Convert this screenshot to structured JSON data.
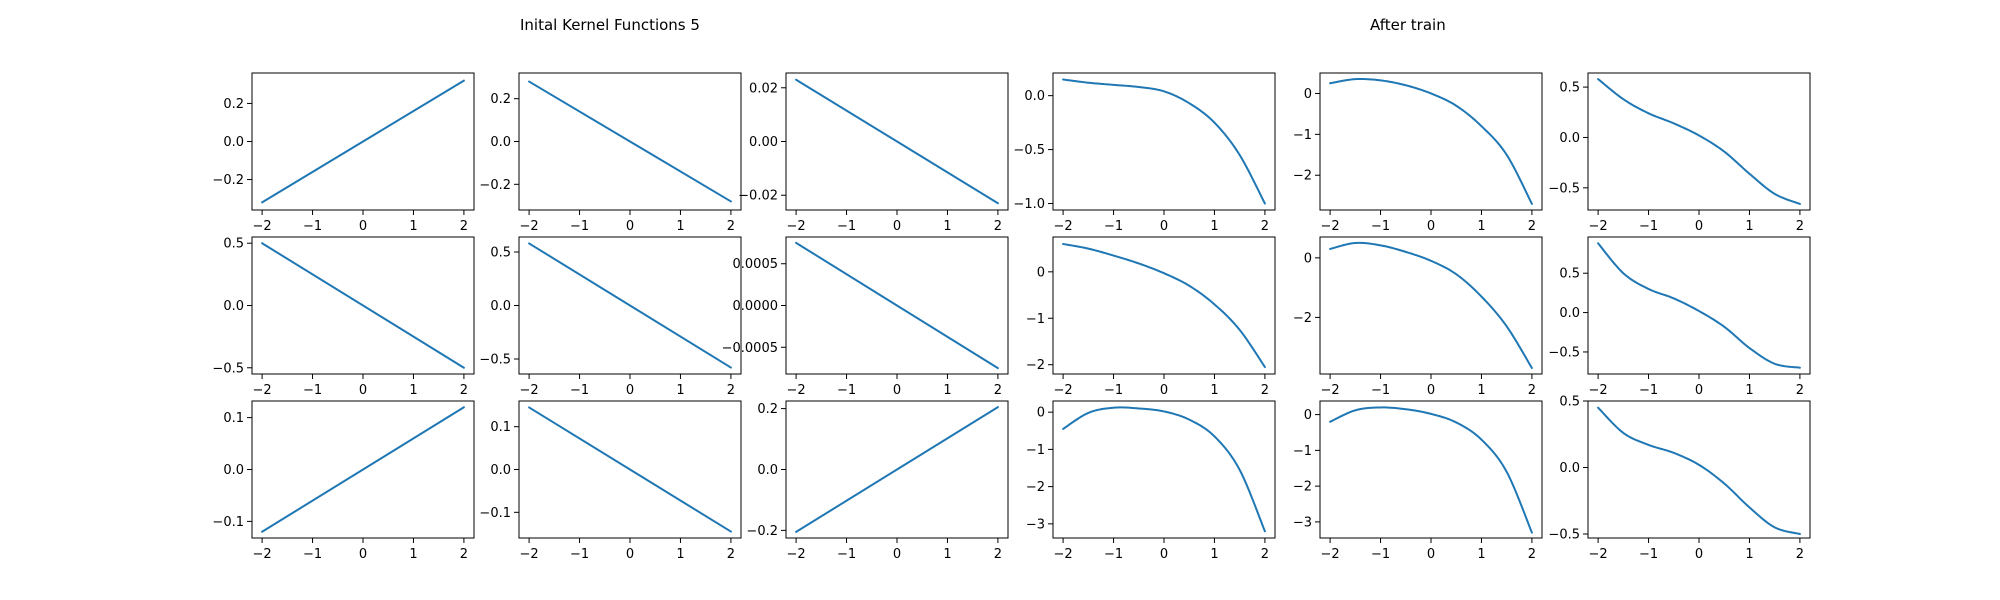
{
  "titles": {
    "left": "Inital Kernel Functions 5",
    "right": "After train"
  },
  "colors": {
    "line": "#1f77b4"
  },
  "chart_data": [
    {
      "type": "line",
      "row": 0,
      "col": 0,
      "x": [
        -2,
        2
      ],
      "y": [
        -0.32,
        0.32
      ],
      "ylim": [
        -0.36,
        0.36
      ],
      "yticks": [
        -0.2,
        0.0,
        0.2
      ],
      "ytick_labels": [
        "−0.2",
        "0.0",
        "0.2"
      ],
      "xticks": [
        -2,
        -1,
        0,
        1,
        2
      ],
      "xtick_labels": [
        "−2",
        "−1",
        "0",
        "1",
        "2"
      ]
    },
    {
      "type": "line",
      "row": 0,
      "col": 1,
      "x": [
        -2,
        2
      ],
      "y": [
        0.28,
        -0.28
      ],
      "ylim": [
        -0.32,
        0.32
      ],
      "yticks": [
        -0.2,
        0.0,
        0.2
      ],
      "ytick_labels": [
        "−0.2",
        "0.0",
        "0.2"
      ],
      "xticks": [
        -2,
        -1,
        0,
        1,
        2
      ],
      "xtick_labels": [
        "−2",
        "−1",
        "0",
        "1",
        "2"
      ]
    },
    {
      "type": "line",
      "row": 0,
      "col": 2,
      "x": [
        -2,
        2
      ],
      "y": [
        0.023,
        -0.023
      ],
      "ylim": [
        -0.0255,
        0.0255
      ],
      "yticks": [
        -0.02,
        0.0,
        0.02
      ],
      "ytick_labels": [
        "−0.02",
        "0.00",
        "0.02"
      ],
      "xticks": [
        -2,
        -1,
        0,
        1,
        2
      ],
      "xtick_labels": [
        "−2",
        "−1",
        "0",
        "1",
        "2"
      ]
    },
    {
      "type": "line",
      "row": 0,
      "col": 3,
      "x": [
        -2,
        -1.5,
        -1,
        -0.5,
        0,
        0.5,
        1,
        1.5,
        2
      ],
      "y": [
        0.15,
        0.12,
        0.1,
        0.08,
        0.04,
        -0.07,
        -0.25,
        -0.55,
        -1.0
      ],
      "ylim": [
        -1.06,
        0.21
      ],
      "yticks": [
        -1.0,
        -0.5,
        0.0
      ],
      "ytick_labels": [
        "−1.0",
        "−0.5",
        "0.0"
      ],
      "xticks": [
        -2,
        -1,
        0,
        1,
        2
      ],
      "xtick_labels": [
        "−2",
        "−1",
        "0",
        "1",
        "2"
      ]
    },
    {
      "type": "line",
      "row": 0,
      "col": 4,
      "x": [
        -2,
        -1.5,
        -1,
        -0.5,
        0,
        0.5,
        1,
        1.5,
        2
      ],
      "y": [
        0.25,
        0.35,
        0.32,
        0.2,
        0.0,
        -0.3,
        -0.8,
        -1.5,
        -2.7
      ],
      "ylim": [
        -2.85,
        0.5
      ],
      "yticks": [
        -2,
        -1,
        0
      ],
      "ytick_labels": [
        "−2",
        "−1",
        "0"
      ],
      "xticks": [
        -2,
        -1,
        0,
        1,
        2
      ],
      "xtick_labels": [
        "−2",
        "−1",
        "0",
        "1",
        "2"
      ]
    },
    {
      "type": "line",
      "row": 0,
      "col": 5,
      "x": [
        -2,
        -1.5,
        -1,
        -0.5,
        0,
        0.5,
        1,
        1.5,
        2
      ],
      "y": [
        0.58,
        0.38,
        0.24,
        0.14,
        0.02,
        -0.14,
        -0.36,
        -0.56,
        -0.66
      ],
      "ylim": [
        -0.72,
        0.64
      ],
      "yticks": [
        -0.5,
        0.0,
        0.5
      ],
      "ytick_labels": [
        "−0.5",
        "0.0",
        "0.5"
      ],
      "xticks": [
        -2,
        -1,
        0,
        1,
        2
      ],
      "xtick_labels": [
        "−2",
        "−1",
        "0",
        "1",
        "2"
      ]
    },
    {
      "type": "line",
      "row": 1,
      "col": 0,
      "x": [
        -2,
        2
      ],
      "y": [
        0.5,
        -0.5
      ],
      "ylim": [
        -0.55,
        0.55
      ],
      "yticks": [
        -0.5,
        0.0,
        0.5
      ],
      "ytick_labels": [
        "−0.5",
        "0.0",
        "0.5"
      ],
      "xticks": [
        -2,
        -1,
        0,
        1,
        2
      ],
      "xtick_labels": [
        "−2",
        "−1",
        "0",
        "1",
        "2"
      ]
    },
    {
      "type": "line",
      "row": 1,
      "col": 1,
      "x": [
        -2,
        2
      ],
      "y": [
        0.58,
        -0.58
      ],
      "ylim": [
        -0.64,
        0.64
      ],
      "yticks": [
        -0.5,
        0.0,
        0.5
      ],
      "ytick_labels": [
        "−0.5",
        "0.0",
        "0.5"
      ],
      "xticks": [
        -2,
        -1,
        0,
        1,
        2
      ],
      "xtick_labels": [
        "−2",
        "−1",
        "0",
        "1",
        "2"
      ]
    },
    {
      "type": "line",
      "row": 1,
      "col": 2,
      "x": [
        -2,
        2
      ],
      "y": [
        0.00075,
        -0.00075
      ],
      "ylim": [
        -0.00082,
        0.00082
      ],
      "yticks": [
        -0.0005,
        0.0,
        0.0005
      ],
      "ytick_labels": [
        "−0.0005",
        "0.0000",
        "0.0005"
      ],
      "xticks": [
        -2,
        -1,
        0,
        1,
        2
      ],
      "xtick_labels": [
        "−2",
        "−1",
        "0",
        "1",
        "2"
      ]
    },
    {
      "type": "line",
      "row": 1,
      "col": 3,
      "x": [
        -2,
        -1.5,
        -1,
        -0.5,
        0,
        0.5,
        1,
        1.5,
        2
      ],
      "y": [
        0.6,
        0.5,
        0.35,
        0.18,
        -0.03,
        -0.3,
        -0.7,
        -1.25,
        -2.05
      ],
      "ylim": [
        -2.2,
        0.75
      ],
      "yticks": [
        -2,
        -1,
        0
      ],
      "ytick_labels": [
        "−2",
        "−1",
        "0"
      ],
      "xticks": [
        -2,
        -1,
        0,
        1,
        2
      ],
      "xtick_labels": [
        "−2",
        "−1",
        "0",
        "1",
        "2"
      ]
    },
    {
      "type": "line",
      "row": 1,
      "col": 4,
      "x": [
        -2,
        -1.5,
        -1,
        -0.5,
        0,
        0.5,
        1,
        1.5,
        2
      ],
      "y": [
        0.3,
        0.5,
        0.42,
        0.2,
        -0.1,
        -0.55,
        -1.3,
        -2.3,
        -3.7
      ],
      "ylim": [
        -3.9,
        0.7
      ],
      "yticks": [
        -2,
        0
      ],
      "ytick_labels": [
        "−2",
        "0"
      ],
      "xticks": [
        -2,
        -1,
        0,
        1,
        2
      ],
      "xtick_labels": [
        "−2",
        "−1",
        "0",
        "1",
        "2"
      ]
    },
    {
      "type": "line",
      "row": 1,
      "col": 5,
      "x": [
        -2,
        -1.5,
        -1,
        -0.5,
        0,
        0.5,
        1,
        1.5,
        2
      ],
      "y": [
        0.88,
        0.5,
        0.3,
        0.18,
        0.02,
        -0.18,
        -0.45,
        -0.65,
        -0.7
      ],
      "ylim": [
        -0.78,
        0.96
      ],
      "yticks": [
        -0.5,
        0.0,
        0.5
      ],
      "ytick_labels": [
        "−0.5",
        "0.0",
        "0.5"
      ],
      "xticks": [
        -2,
        -1,
        0,
        1,
        2
      ],
      "xtick_labels": [
        "−2",
        "−1",
        "0",
        "1",
        "2"
      ]
    },
    {
      "type": "line",
      "row": 2,
      "col": 0,
      "x": [
        -2,
        2
      ],
      "y": [
        -0.12,
        0.12
      ],
      "ylim": [
        -0.132,
        0.132
      ],
      "yticks": [
        -0.1,
        0.0,
        0.1
      ],
      "ytick_labels": [
        "−0.1",
        "0.0",
        "0.1"
      ],
      "xticks": [
        -2,
        -1,
        0,
        1,
        2
      ],
      "xtick_labels": [
        "−2",
        "−1",
        "0",
        "1",
        "2"
      ]
    },
    {
      "type": "line",
      "row": 2,
      "col": 1,
      "x": [
        -2,
        2
      ],
      "y": [
        0.145,
        -0.145
      ],
      "ylim": [
        -0.16,
        0.16
      ],
      "yticks": [
        -0.1,
        0.0,
        0.1
      ],
      "ytick_labels": [
        "−0.1",
        "0.0",
        "0.1"
      ],
      "xticks": [
        -2,
        -1,
        0,
        1,
        2
      ],
      "xtick_labels": [
        "−2",
        "−1",
        "0",
        "1",
        "2"
      ]
    },
    {
      "type": "line",
      "row": 2,
      "col": 2,
      "x": [
        -2,
        2
      ],
      "y": [
        -0.205,
        0.205
      ],
      "ylim": [
        -0.225,
        0.225
      ],
      "yticks": [
        -0.2,
        0.0,
        0.2
      ],
      "ytick_labels": [
        "−0.2",
        "0.0",
        "0.2"
      ],
      "xticks": [
        -2,
        -1,
        0,
        1,
        2
      ],
      "xtick_labels": [
        "−2",
        "−1",
        "0",
        "1",
        "2"
      ]
    },
    {
      "type": "line",
      "row": 2,
      "col": 3,
      "x": [
        -2,
        -1.5,
        -1,
        -0.5,
        0,
        0.5,
        1,
        1.5,
        2
      ],
      "y": [
        -0.45,
        -0.02,
        0.12,
        0.1,
        0.02,
        -0.2,
        -0.65,
        -1.55,
        -3.2
      ],
      "ylim": [
        -3.38,
        0.3
      ],
      "yticks": [
        -3,
        -2,
        -1,
        0
      ],
      "ytick_labels": [
        "−3",
        "−2",
        "−1",
        "0"
      ],
      "xticks": [
        -2,
        -1,
        0,
        1,
        2
      ],
      "xtick_labels": [
        "−2",
        "−1",
        "0",
        "1",
        "2"
      ]
    },
    {
      "type": "line",
      "row": 2,
      "col": 4,
      "x": [
        -2,
        -1.5,
        -1,
        -0.5,
        0,
        0.5,
        1,
        1.5,
        2
      ],
      "y": [
        -0.2,
        0.12,
        0.2,
        0.15,
        0.02,
        -0.22,
        -0.7,
        -1.6,
        -3.3
      ],
      "ylim": [
        -3.45,
        0.38
      ],
      "yticks": [
        -3,
        -2,
        -1,
        0
      ],
      "ytick_labels": [
        "−3",
        "−2",
        "−1",
        "0"
      ],
      "xticks": [
        -2,
        -1,
        0,
        1,
        2
      ],
      "xtick_labels": [
        "−2",
        "−1",
        "0",
        "1",
        "2"
      ]
    },
    {
      "type": "line",
      "row": 2,
      "col": 5,
      "x": [
        -2,
        -1.5,
        -1,
        -0.5,
        0,
        0.5,
        1,
        1.5,
        2
      ],
      "y": [
        0.45,
        0.26,
        0.17,
        0.11,
        0.02,
        -0.12,
        -0.3,
        -0.45,
        -0.5
      ],
      "ylim": [
        -0.53,
        0.5
      ],
      "yticks": [
        -0.5,
        0.0,
        0.5
      ],
      "ytick_labels": [
        "−0.5",
        "0.0",
        "0.5"
      ],
      "xticks": [
        -2,
        -1,
        0,
        1,
        2
      ],
      "xtick_labels": [
        "−2",
        "−1",
        "0",
        "1",
        "2"
      ]
    }
  ]
}
